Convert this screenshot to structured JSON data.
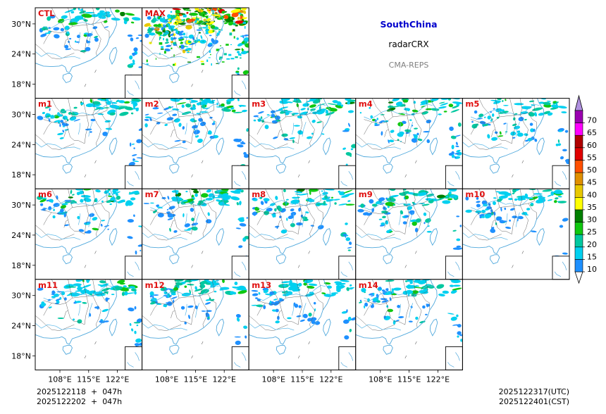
{
  "chart_data": {
    "type": "heatmap",
    "title": "SouthChina",
    "subtitle": "radarCRX",
    "source": "CMA-REPS",
    "panels": [
      {
        "label": "CTL",
        "row": 0,
        "col": 0
      },
      {
        "label": "MAX",
        "row": 0,
        "col": 1
      },
      {
        "label": "m1",
        "row": 1,
        "col": 0
      },
      {
        "label": "m2",
        "row": 1,
        "col": 1
      },
      {
        "label": "m3",
        "row": 1,
        "col": 2
      },
      {
        "label": "m4",
        "row": 1,
        "col": 3
      },
      {
        "label": "m5",
        "row": 1,
        "col": 4
      },
      {
        "label": "m6",
        "row": 2,
        "col": 0
      },
      {
        "label": "m7",
        "row": 2,
        "col": 1
      },
      {
        "label": "m8",
        "row": 2,
        "col": 2
      },
      {
        "label": "m9",
        "row": 2,
        "col": 3
      },
      {
        "label": "m10",
        "row": 2,
        "col": 4
      },
      {
        "label": "m11",
        "row": 3,
        "col": 0
      },
      {
        "label": "m12",
        "row": 3,
        "col": 1
      },
      {
        "label": "m13",
        "row": 3,
        "col": 2
      },
      {
        "label": "m14",
        "row": 3,
        "col": 3
      }
    ],
    "y_ticks": [
      "30°N",
      "24°N",
      "18°N"
    ],
    "x_ticks": [
      "108°E",
      "115°E",
      "122°E"
    ],
    "colorbar": {
      "levels": [
        10,
        15,
        20,
        25,
        30,
        35,
        40,
        45,
        50,
        55,
        60,
        65,
        70
      ],
      "colors": [
        "#1E90FF",
        "#00D0F0",
        "#00C8A0",
        "#10C810",
        "#008000",
        "#FFFF00",
        "#E8C800",
        "#E09000",
        "#FF5000",
        "#E00000",
        "#B00000",
        "#FF00FF",
        "#9A00B0"
      ],
      "extend_low_color": "#FFFFFF",
      "extend_high_color": "#B090E0"
    },
    "init_utc": "2025122118  +  047h",
    "init_cst": "2025122202  +  047h",
    "valid_utc": "2025122317(UTC)",
    "valid_cst": "2025122401(CST)"
  }
}
